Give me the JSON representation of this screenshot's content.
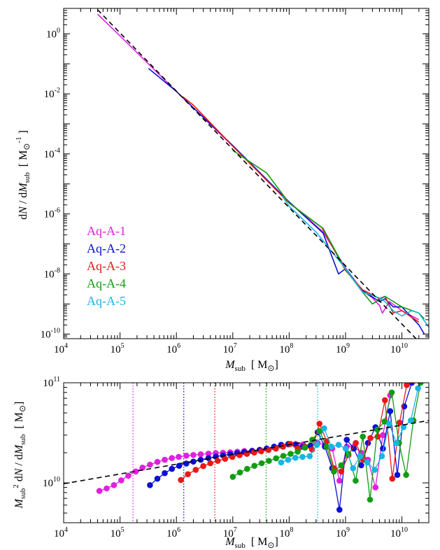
{
  "chart_data": [
    {
      "type": "line",
      "xlabel": "M_sub [M_sun]",
      "ylabel": "dN / dM_sub [M_sun^-1]",
      "xscale": "log",
      "yscale": "log",
      "xlim": [
        10000,
        30000000000
      ],
      "ylim": [
        7e-11,
        7
      ],
      "xticks": [
        {
          "value": 10000,
          "exp": "4"
        },
        {
          "value": 100000,
          "exp": "5"
        },
        {
          "value": 1000000,
          "exp": "6"
        },
        {
          "value": 10000000,
          "exp": "7"
        },
        {
          "value": 100000000,
          "exp": "8"
        },
        {
          "value": 1000000000,
          "exp": "9"
        },
        {
          "value": 10000000000,
          "exp": "10"
        }
      ],
      "yticks": [
        {
          "value": 1,
          "exp": "0"
        },
        {
          "value": 0.01,
          "exp": "-2"
        },
        {
          "value": 0.0001,
          "exp": "-4"
        },
        {
          "value": 1e-06,
          "exp": "-6"
        },
        {
          "value": 1e-08,
          "exp": "-8"
        },
        {
          "value": 1e-10,
          "exp": "-10"
        }
      ],
      "legend_position": "left, middle",
      "reference_line": {
        "style": "dashed",
        "color": "#000000",
        "x": [
          40000,
          30000000000
        ],
        "y": [
          6.3,
          2.55e-11
        ]
      },
      "series": [
        {
          "name": "Aq-A-1",
          "color": "#e020e0",
          "x": [
            40000,
            100000,
            1000000,
            10000000,
            100000000,
            400000000,
            1000000000,
            2000000000,
            3000000000,
            4000000000,
            4500000000,
            6000000000,
            10000000000,
            20000000000
          ],
          "y": [
            4.5,
            0.85,
            0.012,
            0.00018,
            2.5e-06,
            2.5e-07,
            1.6e-08,
            2.7e-09,
            1.6e-09,
            9e-10,
            5e-10,
            1.2e-09,
            6e-10,
            3e-10
          ]
        },
        {
          "name": "Aq-A-2",
          "color": "#0a10d0",
          "x": [
            320000,
            1000000,
            10000000,
            100000000,
            400000000,
            750000000,
            1000000000,
            2000000000,
            4000000000,
            5000000000,
            7000000000,
            10000000000,
            20000000000,
            25000000000
          ],
          "y": [
            0.07,
            0.012,
            0.00019,
            2.5e-06,
            2.3e-07,
            1e-08,
            1.5e-08,
            2.8e-09,
            1.2e-09,
            1.5e-09,
            8e-10,
            8e-10,
            2e-10,
            1e-10
          ]
        },
        {
          "name": "Aq-A-3",
          "color": "#e81818",
          "x": [
            1300000,
            2000000,
            10000000,
            100000000,
            380000000,
            1000000000,
            2000000000,
            4000000000,
            5000000000,
            7000000000,
            10000000000,
            20000000000
          ],
          "y": [
            0.008,
            0.0042,
            0.00018,
            2.3e-06,
            3.5e-07,
            1.3e-08,
            3e-09,
            1.5e-09,
            1.8e-09,
            5e-10,
            6e-10,
            2.5e-10
          ]
        },
        {
          "name": "Aq-A-4",
          "color": "#129c12",
          "x": [
            10000000,
            40000000,
            100000000,
            400000000,
            1000000000,
            2000000000,
            3000000000,
            5000000000,
            10000000000,
            20000000000,
            25000000000
          ],
          "y": [
            0.00013,
            2.3e-05,
            2.3e-06,
            3.3e-07,
            1.4e-08,
            2.5e-09,
            1e-09,
            1.8e-09,
            8e-10,
            5e-10,
            3.2e-10
          ]
        },
        {
          "name": "Aq-A-5",
          "color": "#18b4e4",
          "x": [
            75000000,
            100000000,
            300000000,
            1000000000,
            2000000000,
            4000000000,
            5000000000,
            7000000000,
            10000000000,
            15000000000,
            20000000000,
            30000000000
          ],
          "y": [
            4e-06,
            1.8e-06,
            2.5e-07,
            1.5e-08,
            2.5e-09,
            1.6e-09,
            1.2e-09,
            6e-10,
            4e-10,
            6e-10,
            5e-10,
            1.7e-10
          ]
        }
      ]
    },
    {
      "type": "line",
      "xlabel": "M_sub [M_sun]",
      "ylabel": "M_sub^2 dN / dM_sub [M_sun]",
      "xscale": "log",
      "yscale": "log",
      "xlim": [
        10000,
        30000000000
      ],
      "ylim": [
        4000000000.0,
        100000000000.0
      ],
      "xticks": [
        {
          "value": 10000,
          "exp": "4"
        },
        {
          "value": 100000,
          "exp": "5"
        },
        {
          "value": 1000000,
          "exp": "6"
        },
        {
          "value": 10000000,
          "exp": "7"
        },
        {
          "value": 100000000,
          "exp": "8"
        },
        {
          "value": 1000000000,
          "exp": "9"
        },
        {
          "value": 10000000000,
          "exp": "10"
        }
      ],
      "yticks": [
        {
          "value": 10000000000,
          "exp": "10"
        },
        {
          "value": 100000000000,
          "exp": "11"
        }
      ],
      "reference_line": {
        "style": "dashed",
        "color": "#000000",
        "x": [
          10000,
          30000000000
        ],
        "y": [
          9800000000.0,
          42000000000.0
        ]
      },
      "vertical_lines": [
        {
          "x": 170000,
          "color": "#e020e0"
        },
        {
          "x": 1350000,
          "color": "#0a10d0"
        },
        {
          "x": 4800000,
          "color": "#e81818"
        },
        {
          "x": 39000000,
          "color": "#129c12"
        },
        {
          "x": 320000000,
          "color": "#18b4e4"
        }
      ],
      "series": [
        {
          "name": "Aq-A-1",
          "color": "#e020e0",
          "x": [
            43000,
            58000,
            78000,
            105000,
            140000,
            190000,
            250000,
            340000,
            460000,
            620000,
            830000,
            1100000,
            1500000,
            2000000,
            2700000,
            3700000,
            5000000,
            6700000,
            9000000,
            12000000,
            16000000,
            22000000,
            30000000,
            40000000,
            54000000,
            72000000,
            97000000,
            130000000,
            175000000,
            240000000,
            320000000,
            430000000,
            580000000,
            780000000,
            1050000000,
            1400000000,
            1900000000,
            2500000000,
            3400000000,
            4600000000,
            6200000000
          ],
          "y": [
            8300000000.0,
            8800000000.0,
            9500000000.0,
            10600000000.0,
            11800000000.0,
            13000000000.0,
            14200000000.0,
            15200000000.0,
            16200000000.0,
            17000000000.0,
            17700000000.0,
            18200000000.0,
            18700000000.0,
            19000000000.0,
            19300000000.0,
            19600000000.0,
            19800000000.0,
            20000000000.0,
            20200000000.0,
            20500000000.0,
            20800000000.0,
            21000000000.0,
            21400000000.0,
            22000000000.0,
            22800000000.0,
            23500000000.0,
            24200000000.0,
            24500000000.0,
            24200000000.0,
            23500000000.0,
            25000000000.0,
            24000000000.0,
            22000000000.0,
            10500000000.0,
            23000000000.0,
            23000000000.0,
            20000000000.0,
            17000000000.0,
            9000000000.0,
            30000000000.0,
            75000000000.0
          ]
        },
        {
          "name": "Aq-A-2",
          "color": "#0a10d0",
          "x": [
            340000,
            460000,
            620000,
            830000,
            1120000,
            1500000,
            2000000,
            2700000,
            3700000,
            5000000,
            6700000,
            9000000,
            12000000,
            16000000,
            22000000,
            30000000,
            40000000,
            54000000,
            72000000,
            97000000,
            130000000,
            175000000,
            240000000,
            320000000,
            430000000,
            580000000,
            780000000,
            1050000000,
            1400000000,
            1900000000,
            2500000000,
            3400000000,
            4600000000,
            6200000000,
            8300000000,
            11000000000,
            15000000000
          ],
          "y": [
            9500000000.0,
            11000000000.0,
            12500000000.0,
            13800000000.0,
            14800000000.0,
            15600000000.0,
            16300000000.0,
            17000000000.0,
            17700000000.0,
            18300000000.0,
            18800000000.0,
            19300000000.0,
            19800000000.0,
            20300000000.0,
            20800000000.0,
            21300000000.0,
            22000000000.0,
            23000000000.0,
            24000000000.0,
            24500000000.0,
            24000000000.0,
            23000000000.0,
            23500000000.0,
            32000000000.0,
            23000000000.0,
            14000000000.0,
            5400000000.0,
            27000000000.0,
            22000000000.0,
            15000000000.0,
            25000000000.0,
            36000000000.0,
            22000000000.0,
            52000000000.0,
            12000000000.0,
            58000000000.0,
            100000000000.0
          ]
        },
        {
          "name": "Aq-A-3",
          "color": "#e81818",
          "x": [
            1200000,
            1600000,
            2200000,
            3000000,
            4000000,
            5400000,
            7300000,
            9800000,
            13200000,
            17800000,
            24000000,
            32000000,
            43000000,
            58000000,
            78000000,
            105000000,
            142000000,
            190000000,
            255000000,
            345000000,
            465000000,
            625000000,
            840000000,
            1130000000,
            1520000000,
            2050000000,
            2760000000,
            3720000000,
            5000000000,
            6750000000,
            9100000000,
            12200000000,
            16400000000,
            22000000000
          ],
          "y": [
            10700000000.0,
            12200000000.0,
            13500000000.0,
            14700000000.0,
            15700000000.0,
            16600000000.0,
            17400000000.0,
            18200000000.0,
            18900000000.0,
            19500000000.0,
            20100000000.0,
            20700000000.0,
            21300000000.0,
            22000000000.0,
            23000000000.0,
            24500000000.0,
            22000000000.0,
            23000000000.0,
            21500000000.0,
            39000000000.0,
            26000000000.0,
            14000000000.0,
            13000000000.0,
            19000000000.0,
            25000000000.0,
            17000000000.0,
            28000000000.0,
            29000000000.0,
            67000000000.0,
            11000000000.0,
            40000000000.0,
            95000000000.0,
            105000000000.0,
            105000000000.0
          ]
        },
        {
          "name": "Aq-A-4",
          "color": "#129c12",
          "x": [
            10000000,
            13400000,
            18000000,
            24200000,
            32500000,
            43700000,
            58700000,
            78800000,
            106000000,
            142000000,
            191000000,
            257000000,
            345000000,
            463000000,
            622000000,
            836000000,
            1120000000,
            1510000000,
            2030000000,
            2720000000,
            3660000000,
            4910000000,
            6600000000,
            8870000000,
            11900000000,
            16000000000,
            21500000000
          ],
          "y": [
            11500000000.0,
            12700000000.0,
            13800000000.0,
            14800000000.0,
            15700000000.0,
            16600000000.0,
            17600000000.0,
            18600000000.0,
            19500000000.0,
            20500000000.0,
            22500000000.0,
            27000000000.0,
            33000000000.0,
            23000000000.0,
            13000000000.0,
            15000000000.0,
            19500000000.0,
            10500000000.0,
            29000000000.0,
            6800000000.0,
            34000000000.0,
            41000000000.0,
            80000000000.0,
            25000000000.0,
            12000000000.0,
            42000000000.0,
            100000000000.0
          ]
        },
        {
          "name": "Aq-A-5",
          "color": "#18b4e4",
          "x": [
            72000000,
            96000000,
            129000000,
            173000000,
            232000000,
            311000000,
            418000000,
            561000000,
            753000000,
            1010000000,
            1360000000,
            1820000000,
            2450000000,
            3290000000,
            4410000000,
            5930000000,
            7960000000,
            10700000000,
            14400000000,
            19300000000
          ],
          "y": [
            16000000000.0,
            17000000000.0,
            17800000000.0,
            18200000000.0,
            18500000000.0,
            24000000000.0,
            35000000000.0,
            23000000000.0,
            24000000000.0,
            22000000000.0,
            14000000000.0,
            18500000000.0,
            16000000000.0,
            13500000000.0,
            18500000000.0,
            39000000000.0,
            25000000000.0,
            36000000000.0,
            42000000000.0,
            88000000000.0
          ]
        }
      ]
    }
  ]
}
